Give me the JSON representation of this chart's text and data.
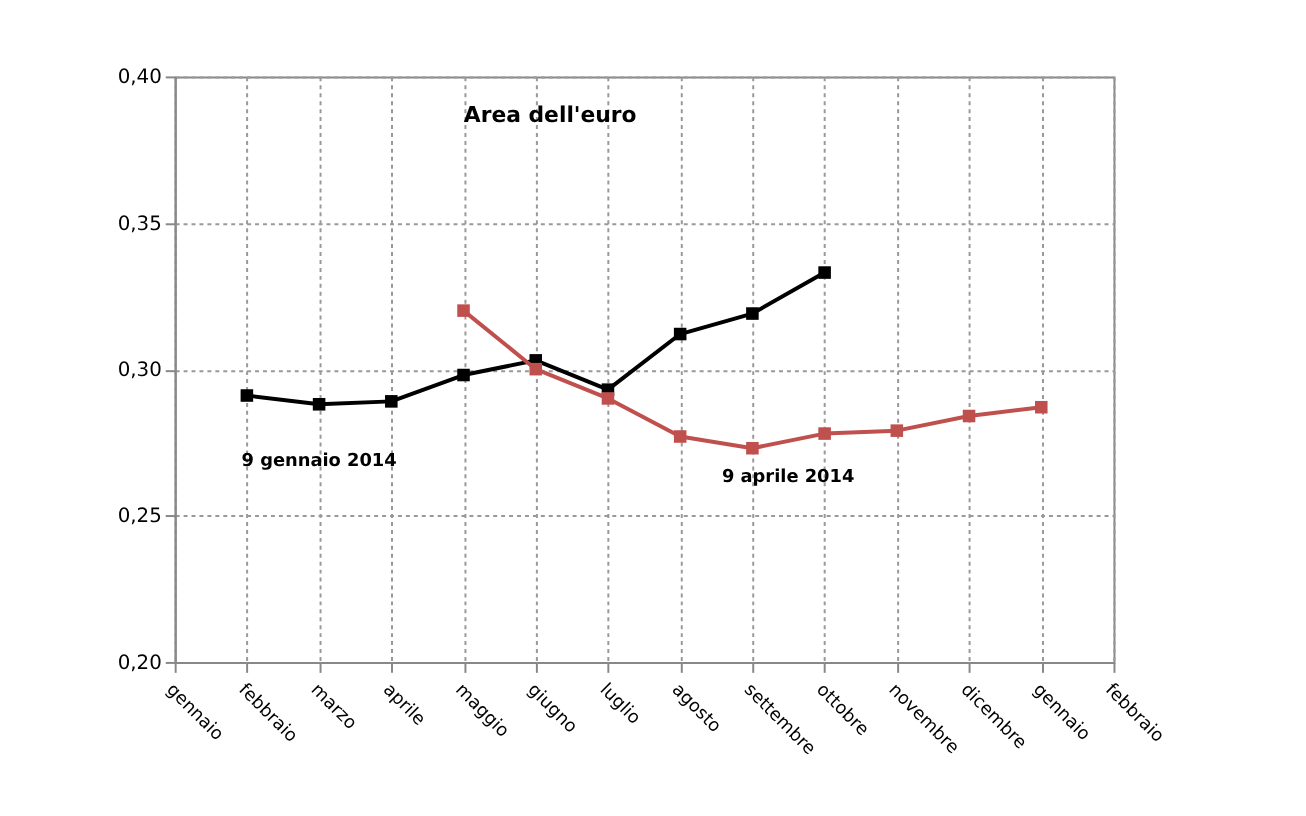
{
  "chart_data": {
    "type": "line",
    "title": "Area dell'euro",
    "categories": [
      "gennaio",
      "febbraio",
      "marzo",
      "aprile",
      "maggio",
      "giugno",
      "luglio",
      "agosto",
      "settembre",
      "ottobre",
      "novembre",
      "dicembre",
      "gennaio",
      "febbraio"
    ],
    "series": [
      {
        "name": "9 gennaio 2014",
        "color": "#000000",
        "values": [
          null,
          0.291,
          0.288,
          0.289,
          0.298,
          0.303,
          0.293,
          0.312,
          0.319,
          0.333,
          null,
          null,
          null,
          null
        ]
      },
      {
        "name": "9 aprile 2014",
        "color": "#c0504d",
        "values": [
          null,
          null,
          null,
          null,
          0.32,
          0.3,
          0.29,
          0.277,
          0.273,
          0.278,
          0.279,
          0.284,
          0.287,
          null
        ]
      }
    ],
    "ylim": [
      0.2,
      0.4
    ],
    "yticks": [
      {
        "value": 0.2,
        "label": "0,20"
      },
      {
        "value": 0.25,
        "label": "0,25"
      },
      {
        "value": 0.3,
        "label": "0,30"
      },
      {
        "value": 0.35,
        "label": "0,35"
      },
      {
        "value": 0.4,
        "label": "0,40"
      }
    ],
    "grid": true,
    "legend": false,
    "marker": "square",
    "line_style": "solid"
  }
}
